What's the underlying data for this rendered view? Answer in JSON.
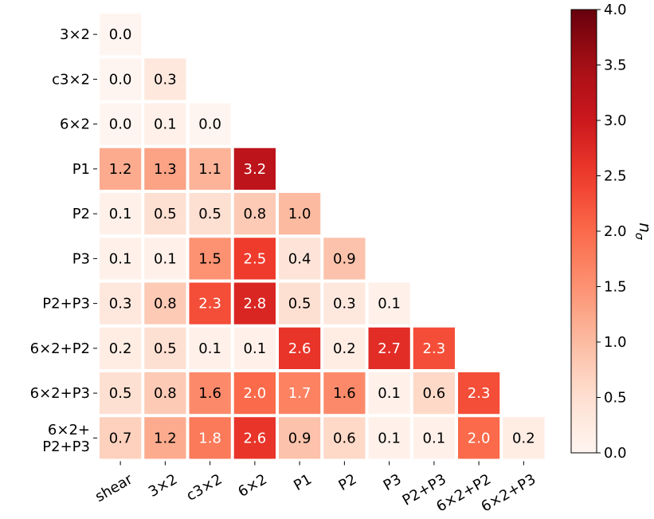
{
  "chart_data": {
    "type": "heatmap",
    "title": "",
    "row_labels": [
      "3×2",
      "c3×2",
      "6×2",
      "P1",
      "P2",
      "P3",
      "P2+P3",
      "6×2+P2",
      "6×2+P3",
      "6×2+\nP2+P3"
    ],
    "col_labels": [
      "shear",
      "3×2",
      "c3×2",
      "6×2",
      "P1",
      "P2",
      "P3",
      "P2+P3",
      "6×2+P2",
      "6×2+P3"
    ],
    "values": [
      [
        0.0
      ],
      [
        0.0,
        0.3
      ],
      [
        0.0,
        0.1,
        0.0
      ],
      [
        1.2,
        1.3,
        1.1,
        3.2
      ],
      [
        0.1,
        0.5,
        0.5,
        0.8,
        1.0
      ],
      [
        0.1,
        0.1,
        1.5,
        2.5,
        0.4,
        0.9
      ],
      [
        0.3,
        0.8,
        2.3,
        2.8,
        0.5,
        0.3,
        0.1
      ],
      [
        0.2,
        0.5,
        0.1,
        0.1,
        2.6,
        0.2,
        2.7,
        2.3
      ],
      [
        0.5,
        0.8,
        1.6,
        2.0,
        1.7,
        1.6,
        0.1,
        0.6,
        2.3
      ],
      [
        0.7,
        1.2,
        1.8,
        2.6,
        0.9,
        0.6,
        0.1,
        0.1,
        2.0,
        0.2
      ]
    ],
    "colorbar": {
      "label": "n_σ",
      "range": [
        0.0,
        4.0
      ],
      "ticks": [
        "0.0",
        "0.5",
        "1.0",
        "1.5",
        "2.0",
        "2.5",
        "3.0",
        "3.5",
        "4.0"
      ],
      "colormap": "Reds"
    },
    "grid": false,
    "legend": "none"
  }
}
